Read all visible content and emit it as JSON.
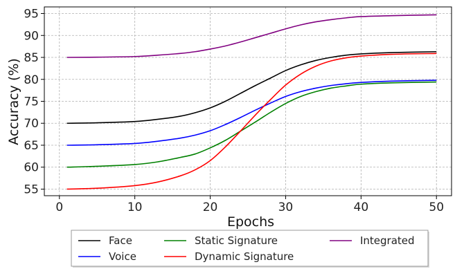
{
  "chart_data": {
    "type": "line",
    "title": "",
    "xlabel": "Epochs",
    "ylabel": "Accuracy (%)",
    "xlim": [
      -2,
      52
    ],
    "ylim": [
      53.5,
      96.5
    ],
    "xticks": [
      0,
      10,
      20,
      30,
      40,
      50
    ],
    "yticks": [
      55,
      60,
      65,
      70,
      75,
      80,
      85,
      90,
      95
    ],
    "grid": true,
    "legend_position": "bottom-center",
    "legend_columns": 3,
    "x": [
      1,
      5,
      10,
      13,
      16,
      18,
      20,
      22,
      24,
      26,
      28,
      30,
      32,
      34,
      36,
      38,
      40,
      44,
      50
    ],
    "series": [
      {
        "name": "Face",
        "color": "#000000",
        "values": [
          70.0,
          70.1,
          70.4,
          70.9,
          71.6,
          72.4,
          73.5,
          75.0,
          76.8,
          78.6,
          80.3,
          82.0,
          83.3,
          84.3,
          85.0,
          85.5,
          85.8,
          86.1,
          86.3
        ]
      },
      {
        "name": "Voice",
        "color": "#0000ff",
        "values": [
          65.0,
          65.1,
          65.4,
          65.9,
          66.6,
          67.3,
          68.3,
          69.7,
          71.3,
          73.0,
          74.6,
          76.1,
          77.2,
          78.0,
          78.6,
          79.0,
          79.3,
          79.6,
          79.8
        ]
      },
      {
        "name": "Static Signature",
        "color": "#008000",
        "values": [
          60.0,
          60.2,
          60.6,
          61.2,
          62.2,
          63.0,
          64.4,
          66.1,
          68.2,
          70.3,
          72.5,
          74.5,
          76.1,
          77.2,
          78.0,
          78.5,
          78.9,
          79.2,
          79.4
        ]
      },
      {
        "name": "Dynamic Signature",
        "color": "#ff0000",
        "values": [
          55.0,
          55.2,
          55.8,
          56.6,
          58.0,
          59.4,
          61.5,
          64.6,
          68.2,
          71.9,
          75.4,
          78.7,
          81.2,
          83.0,
          84.2,
          84.9,
          85.3,
          85.7,
          85.9
        ]
      },
      {
        "name": "Integrated",
        "color": "#800080",
        "values": [
          85.0,
          85.05,
          85.2,
          85.5,
          85.9,
          86.3,
          86.9,
          87.6,
          88.5,
          89.5,
          90.5,
          91.5,
          92.4,
          93.1,
          93.6,
          94.0,
          94.3,
          94.5,
          94.7
        ]
      }
    ]
  }
}
